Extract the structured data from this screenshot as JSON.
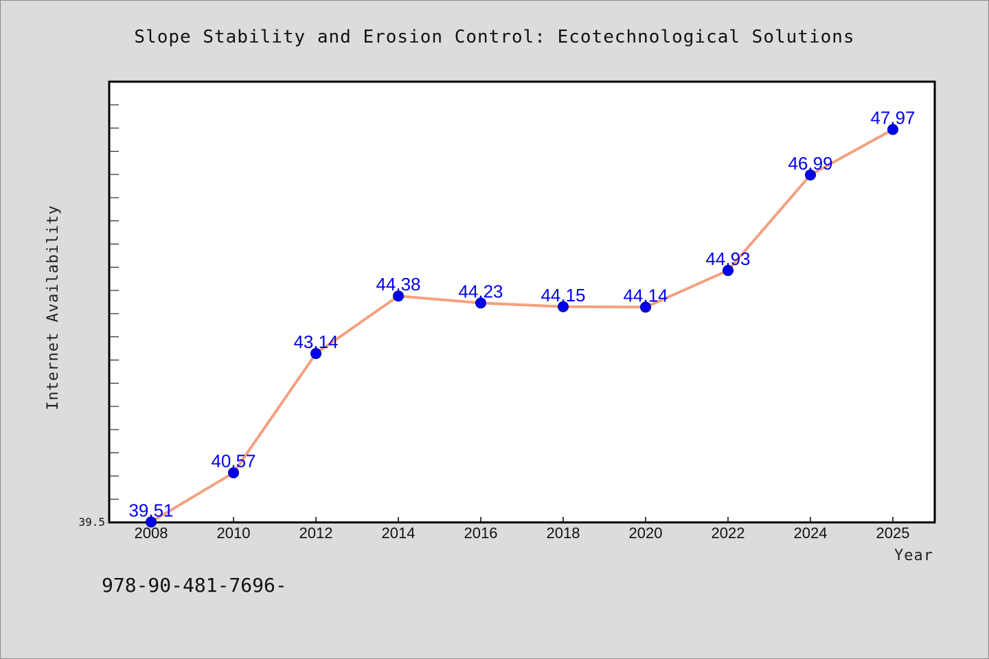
{
  "chart_data": {
    "type": "line",
    "title": "Slope Stability and Erosion Control: Ecotechnological Solutions",
    "xlabel": "Year",
    "ylabel": "Internet Availability",
    "categories": [
      "2008",
      "2010",
      "2012",
      "2014",
      "2016",
      "2018",
      "2020",
      "2022",
      "2024",
      "2025"
    ],
    "values": [
      39.51,
      40.57,
      43.14,
      44.38,
      44.23,
      44.15,
      44.14,
      44.93,
      46.99,
      47.97
    ],
    "value_labels": [
      "39.51",
      "40.57",
      "43.14",
      "44.38",
      "44.23",
      "44.15",
      "44.14",
      "44.93",
      "46.99",
      "47.97"
    ],
    "ylim": [
      39.5,
      49.0
    ],
    "y_tick_labels": [
      "39.5"
    ],
    "grid": false,
    "legend": "none",
    "colors": {
      "line": "#f4a07f",
      "marker": "#0000ee",
      "label": "#0000ee",
      "background": "#dcdcdc",
      "plot_bg": "#ffffff"
    }
  },
  "footer_text": "978-90-481-7696-"
}
